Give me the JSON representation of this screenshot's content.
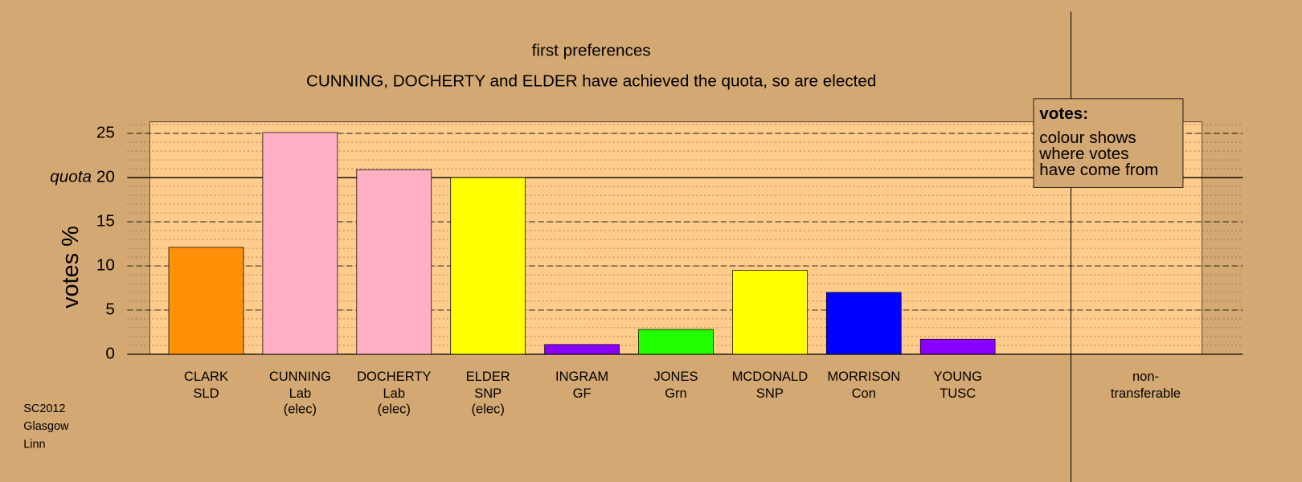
{
  "chart_data": {
    "type": "bar",
    "title": "first preferences",
    "subtitle": "CUNNING, DOCHERTY and ELDER have achieved the quota, so are elected",
    "y_label": "votes %",
    "quota_label": "quota",
    "quota": 20,
    "categories": [
      "CLARK",
      "CUNNING",
      "DOCHERTY",
      "ELDER",
      "INGRAM",
      "JONES",
      "MCDONALD",
      "MORRISON",
      "YOUNG",
      "non-"
    ],
    "parties": [
      "SLD",
      "Lab",
      "Lab",
      "SNP",
      "GF",
      "Grn",
      "SNP",
      "Con",
      "TUSC",
      "transferable"
    ],
    "status": [
      null,
      "(elec)",
      "(elec)",
      "(elec)",
      null,
      null,
      null,
      null,
      null,
      null
    ],
    "values": [
      12.1,
      25.1,
      20.9,
      20.0,
      1.1,
      2.8,
      9.5,
      7.0,
      1.7,
      null
    ],
    "colors": [
      "#ff9108",
      "#ffb0c4",
      "#ffb0c4",
      "#ffff00",
      "#8800ff",
      "#22ff00",
      "#ffff00",
      "#0000ff",
      "#8800ff",
      null
    ],
    "ylim": [
      0,
      26.3
    ],
    "yticks": [
      0,
      5,
      10,
      15,
      20,
      25
    ],
    "minor_step": 1,
    "legend": {
      "title": "votes:",
      "lines": [
        "colour shows",
        "where votes",
        "have come from"
      ]
    },
    "footnote": [
      "SC2012",
      "Glasgow",
      "Linn"
    ]
  }
}
